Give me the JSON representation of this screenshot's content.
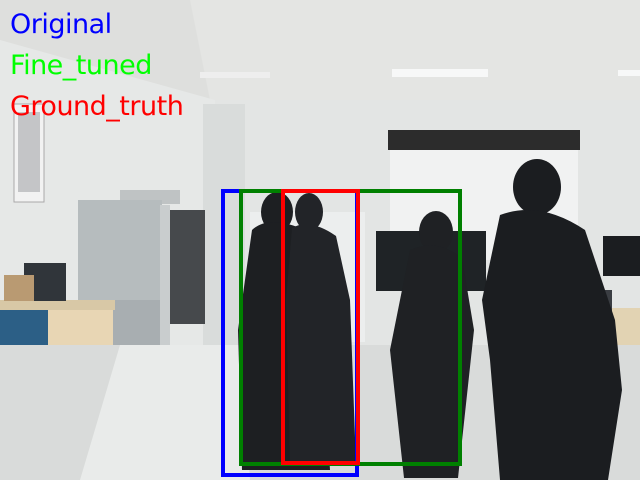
{
  "legend": {
    "items": [
      {
        "label": "Original",
        "color": "#0000ff"
      },
      {
        "label": "Fine_tuned",
        "color": "#00ff00"
      },
      {
        "label": "Ground_truth",
        "color": "#ff0000"
      }
    ]
  },
  "boxes": [
    {
      "name": "original-bounding-box",
      "color": "#0000ff"
    },
    {
      "name": "fine-tuned-bounding-box",
      "color": "#008000"
    },
    {
      "name": "ground-truth-bounding-box",
      "color": "#ff0000"
    }
  ]
}
